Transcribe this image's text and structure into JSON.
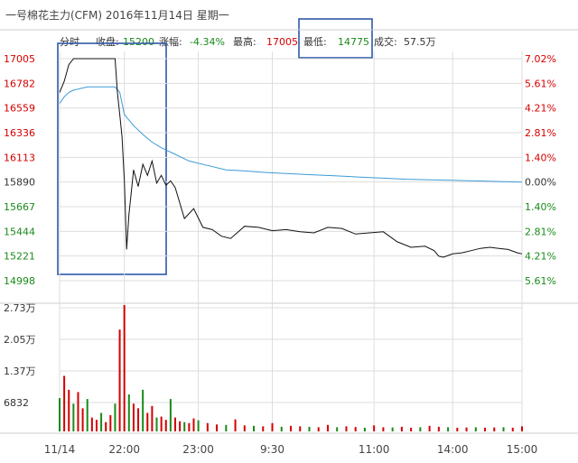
{
  "header": {
    "title": "一号棉花主力(CFM) 2016年11月14日 星期一",
    "mode_label": "分时",
    "close_label": "收盘:",
    "close_value": "15200",
    "change_label": "涨幅:",
    "change_value": "-4.34%",
    "high_label": "最高:",
    "high_value": "17005",
    "low_label": "最低:",
    "low_value": "14775",
    "volume_label": "成交:",
    "volume_value": "57.5万"
  },
  "colors": {
    "up": "#d40000",
    "down": "#1a8a1a",
    "price_line": "#111111",
    "avg_line": "#3a9bd6",
    "highlight_box": "#2f58a8",
    "grid": "#dddddd",
    "text": "#333333"
  },
  "chart_data": {
    "type": "line",
    "price_axis": {
      "left_labels": [
        "17005",
        "16782",
        "16559",
        "16336",
        "16113",
        "15890",
        "15667",
        "15444",
        "15221",
        "14998"
      ],
      "left_colors": [
        "up",
        "up",
        "up",
        "up",
        "up",
        "flat",
        "down",
        "down",
        "down",
        "down"
      ],
      "right_labels": [
        "7.02%",
        "5.61%",
        "4.21%",
        "2.81%",
        "1.40%",
        "0.00%",
        "1.40%",
        "2.81%",
        "4.21%",
        "5.61%"
      ],
      "right_colors": [
        "up",
        "up",
        "up",
        "up",
        "up",
        "flat",
        "down",
        "down",
        "down",
        "down"
      ],
      "ylim": [
        14998,
        17005
      ]
    },
    "volume_axis": {
      "labels": [
        "2.73万",
        "2.05万",
        "1.37万",
        "6832"
      ],
      "ylim": [
        0,
        27300
      ]
    },
    "x_axis": {
      "tick_labels": [
        "11/14",
        "22:00",
        "23:00",
        "9:30",
        "11:00",
        "14:00",
        "15:00"
      ],
      "tick_positions": [
        0,
        14,
        30,
        46,
        68,
        85,
        100
      ]
    },
    "series": [
      {
        "key": "price",
        "x": [
          0,
          1,
          2,
          3,
          4,
          5,
          6,
          6.5,
          7,
          8,
          9,
          10,
          11,
          12,
          12.5,
          13,
          13.5,
          14,
          14.5,
          15,
          15.5,
          16,
          17,
          18,
          19,
          20,
          21,
          22,
          23,
          24,
          25,
          27,
          29,
          31,
          33,
          35,
          37,
          40,
          43,
          46,
          49,
          52,
          55,
          58,
          61,
          64,
          67,
          70,
          73,
          76,
          79,
          81,
          82,
          83,
          85,
          87,
          89,
          91,
          93,
          95,
          97,
          99,
          100
        ],
        "values": [
          16700,
          16800,
          16950,
          17005,
          17005,
          17005,
          17005,
          17005,
          17005,
          17005,
          17005,
          17005,
          17005,
          17005,
          16700,
          16500,
          16300,
          15900,
          15280,
          15600,
          15800,
          16000,
          15850,
          16050,
          15950,
          16080,
          15880,
          15950,
          15860,
          15900,
          15840,
          15560,
          15650,
          15480,
          15460,
          15400,
          15380,
          15490,
          15480,
          15450,
          15460,
          15440,
          15430,
          15480,
          15470,
          15420,
          15430,
          15440,
          15350,
          15300,
          15310,
          15270,
          15220,
          15210,
          15240,
          15250,
          15270,
          15290,
          15300,
          15290,
          15280,
          15250,
          15240
        ]
      },
      {
        "key": "avg",
        "x": [
          0,
          1,
          2,
          3,
          4,
          5,
          6,
          7,
          8,
          9,
          10,
          11,
          12,
          13,
          14,
          16,
          18,
          20,
          22,
          25,
          28,
          32,
          36,
          40,
          45,
          50,
          55,
          60,
          65,
          70,
          75,
          80,
          85,
          90,
          95,
          100
        ],
        "values": [
          16600,
          16660,
          16700,
          16720,
          16730,
          16740,
          16750,
          16750,
          16750,
          16750,
          16750,
          16750,
          16750,
          16700,
          16500,
          16400,
          16320,
          16250,
          16200,
          16140,
          16080,
          16040,
          16000,
          15990,
          15975,
          15965,
          15955,
          15945,
          15935,
          15925,
          15915,
          15910,
          15905,
          15900,
          15895,
          15890
        ]
      }
    ],
    "volume": {
      "x": [
        0,
        1,
        2,
        3,
        4,
        5,
        6,
        7,
        8,
        9,
        10,
        11,
        12,
        13,
        14,
        15,
        16,
        17,
        18,
        19,
        20,
        21,
        22,
        23,
        24,
        25,
        26,
        27,
        28,
        29,
        30,
        32,
        34,
        36,
        38,
        40,
        42,
        44,
        46,
        48,
        50,
        52,
        54,
        56,
        58,
        60,
        62,
        64,
        66,
        68,
        70,
        72,
        74,
        76,
        78,
        80,
        82,
        84,
        86,
        88,
        90,
        92,
        94,
        96,
        98,
        100
      ],
      "values": [
        7200,
        12000,
        9000,
        6000,
        8500,
        5000,
        7000,
        3000,
        2500,
        4000,
        2000,
        3500,
        6000,
        22000,
        27300,
        8000,
        6000,
        5000,
        9000,
        4000,
        5500,
        3000,
        3200,
        2500,
        7000,
        3000,
        2200,
        2000,
        1800,
        2800,
        2400,
        1800,
        1500,
        1400,
        2600,
        1300,
        1200,
        1100,
        1800,
        1000,
        1200,
        1100,
        1000,
        900,
        1400,
        900,
        1100,
        950,
        800,
        1300,
        900,
        850,
        1000,
        800,
        900,
        1200,
        1000,
        900,
        800,
        850,
        900,
        800,
        850,
        900,
        800,
        1100
      ]
    },
    "xlabel": "",
    "ylabel": ""
  }
}
